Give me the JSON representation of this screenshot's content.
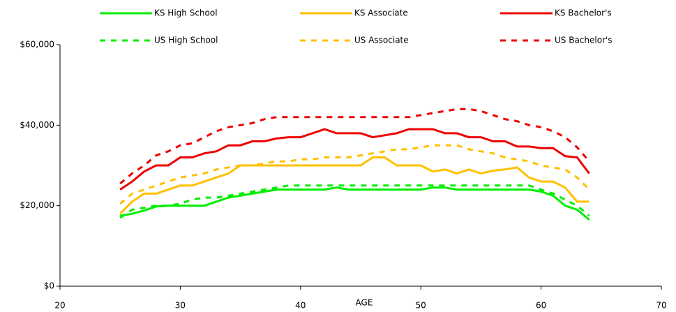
{
  "chart_data": {
    "type": "line",
    "x_label": "AGE",
    "x": [
      25,
      26,
      27,
      28,
      29,
      30,
      31,
      32,
      33,
      34,
      35,
      36,
      37,
      38,
      39,
      40,
      41,
      42,
      43,
      44,
      45,
      46,
      47,
      48,
      49,
      50,
      51,
      52,
      53,
      54,
      55,
      56,
      57,
      58,
      59,
      60,
      61,
      62,
      63,
      64
    ],
    "xlim": [
      20,
      70
    ],
    "xticks": [
      20,
      30,
      40,
      50,
      60,
      70
    ],
    "ylim": [
      0,
      60000
    ],
    "yticks": [
      {
        "value": 0,
        "label": "$0"
      },
      {
        "value": 20000,
        "label": "$20,000"
      },
      {
        "value": 40000,
        "label": "$40,000"
      },
      {
        "value": 60000,
        "label": "$60,000"
      }
    ],
    "series": [
      {
        "name": "KS High School",
        "color": "#00ee00",
        "dashed": false,
        "values": [
          17500,
          18000,
          18800,
          19800,
          20000,
          20000,
          20000,
          20000,
          21000,
          22000,
          22500,
          23000,
          23500,
          24000,
          24000,
          24000,
          24000,
          24000,
          24500,
          24000,
          24000,
          24000,
          24000,
          24000,
          24000,
          24000,
          24500,
          24500,
          24000,
          24000,
          24000,
          24000,
          24000,
          24000,
          24000,
          23500,
          22500,
          20000,
          19000,
          16500
        ]
      },
      {
        "name": "KS Associate",
        "color": "#ffc000",
        "dashed": false,
        "values": [
          18000,
          21000,
          23000,
          23000,
          24000,
          25000,
          25000,
          26000,
          27000,
          28000,
          30000,
          30000,
          30000,
          30000,
          30000,
          30000,
          30000,
          30000,
          30000,
          30000,
          30000,
          32000,
          32000,
          30000,
          30000,
          30000,
          28500,
          29000,
          28000,
          29000,
          28000,
          28700,
          29000,
          29500,
          27000,
          26000,
          26000,
          24500,
          21000,
          21000
        ]
      },
      {
        "name": "KS Bachelor's",
        "color": "#ee0000",
        "dashed": false,
        "values": [
          24000,
          26000,
          28500,
          30000,
          30000,
          32000,
          32000,
          33000,
          33500,
          35000,
          35000,
          36000,
          36000,
          36700,
          37000,
          37000,
          38000,
          39000,
          38000,
          38000,
          38000,
          37000,
          37500,
          38000,
          39000,
          39000,
          39000,
          38000,
          38000,
          37000,
          37000,
          36000,
          36000,
          34700,
          34700,
          34300,
          34300,
          32300,
          32000,
          28000
        ]
      },
      {
        "name": "US High School",
        "color": "#00ee00",
        "dashed": true,
        "values": [
          17000,
          19000,
          19500,
          20000,
          20000,
          20500,
          21500,
          22000,
          22000,
          22500,
          23000,
          23500,
          24000,
          24500,
          25000,
          25000,
          25000,
          25000,
          25000,
          25000,
          25000,
          25000,
          25000,
          25000,
          25000,
          25000,
          25000,
          25000,
          25000,
          25000,
          25000,
          25000,
          25000,
          25000,
          25000,
          24000,
          23000,
          21500,
          20000,
          17500
        ]
      },
      {
        "name": "US Associate",
        "color": "#ffc000",
        "dashed": true,
        "values": [
          20500,
          23000,
          24000,
          25000,
          26000,
          27000,
          27500,
          28000,
          29000,
          29500,
          30000,
          30000,
          30500,
          31000,
          31000,
          31500,
          31500,
          32000,
          32000,
          32000,
          32500,
          33000,
          33500,
          34000,
          34000,
          34500,
          35000,
          35000,
          35000,
          34000,
          33500,
          33000,
          32000,
          31500,
          31000,
          30000,
          29500,
          29000,
          27000,
          24000
        ]
      },
      {
        "name": "US Bachelor's",
        "color": "#ee0000",
        "dashed": true,
        "values": [
          25500,
          28000,
          30000,
          32500,
          33500,
          35000,
          35500,
          37000,
          38500,
          39500,
          40000,
          40500,
          41500,
          42000,
          42000,
          42000,
          42000,
          42000,
          42000,
          42000,
          42000,
          42000,
          42000,
          42000,
          42000,
          42500,
          43000,
          43500,
          44000,
          44000,
          43500,
          42500,
          41500,
          41000,
          40000,
          39500,
          38500,
          37000,
          34500,
          31000
        ]
      }
    ]
  }
}
